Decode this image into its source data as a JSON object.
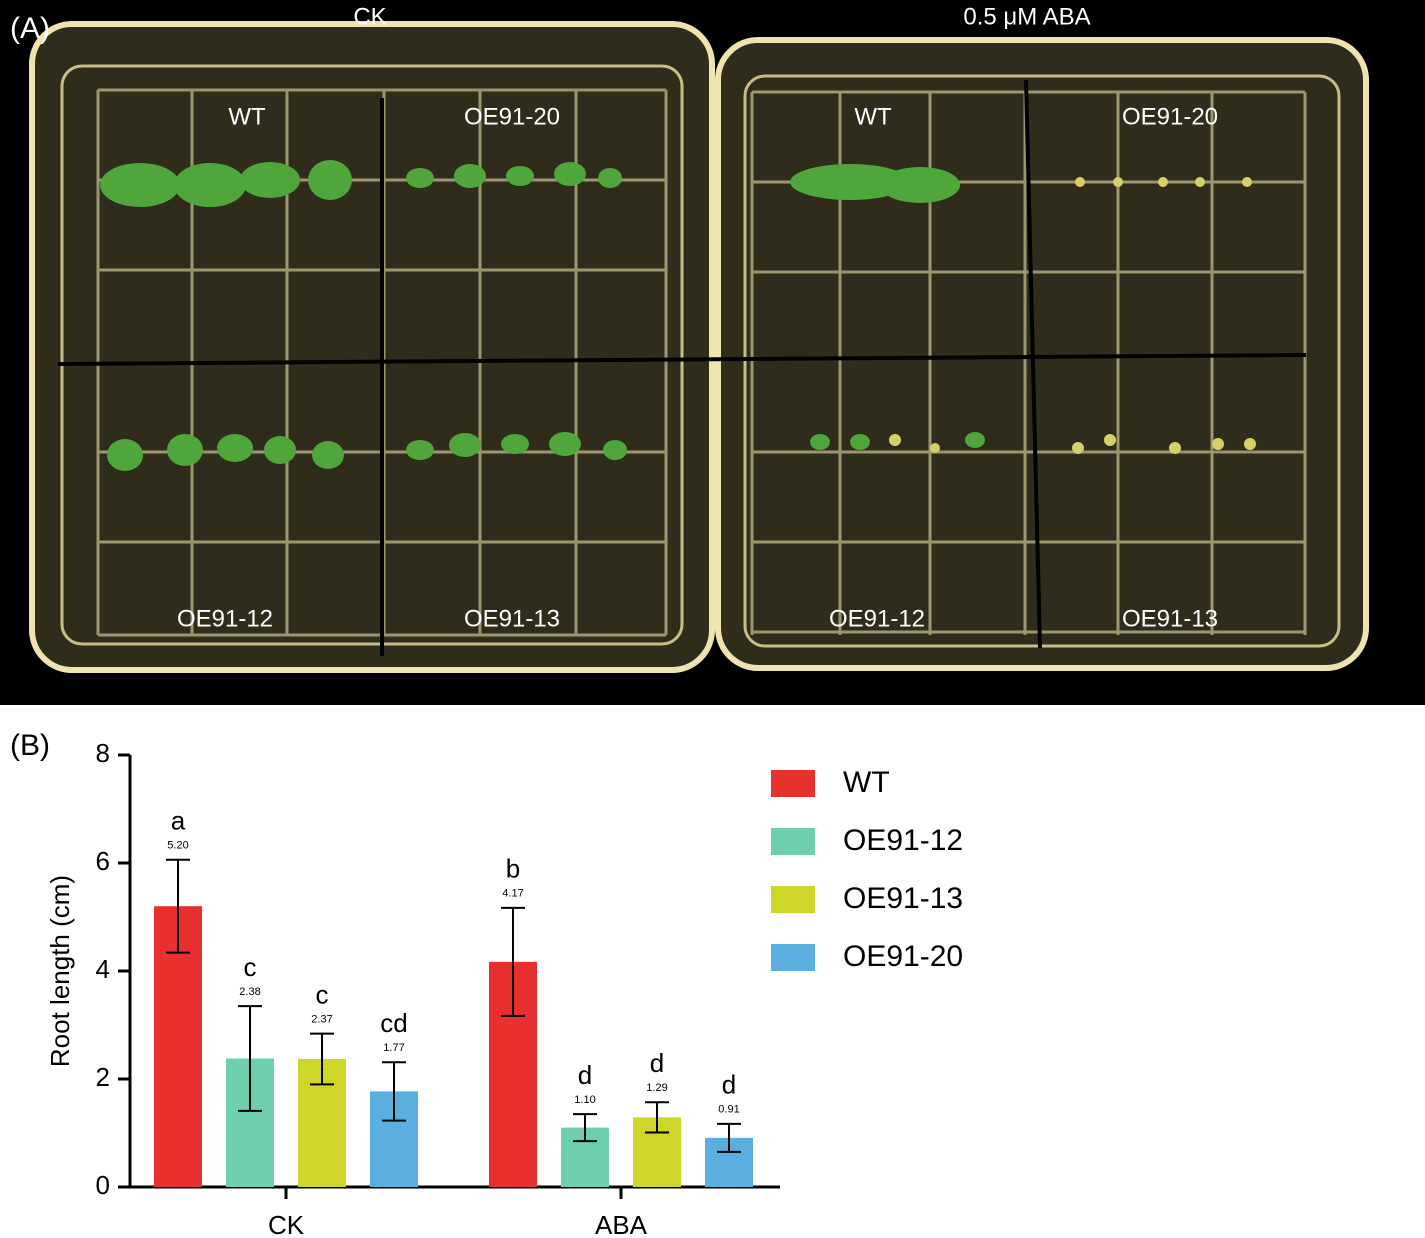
{
  "panel_a": {
    "label": "(A)",
    "conditions": [
      "CK",
      "0.5 μM ABA"
    ],
    "plates": [
      {
        "quadrants": [
          "WT",
          "OE91-20",
          "OE91-12",
          "OE91-13"
        ]
      },
      {
        "quadrants": [
          "WT",
          "OE91-20",
          "OE91-12",
          "OE91-13"
        ]
      }
    ]
  },
  "chart_data": {
    "type": "bar",
    "panel_label": "(B)",
    "ylabel": "Root length (cm)",
    "categories": [
      "CK",
      "ABA"
    ],
    "series": [
      {
        "name": "WT",
        "color": "#e8302e",
        "values": [
          5.2,
          4.17
        ],
        "value_labels": [
          "5.20",
          "4.17"
        ],
        "errors": [
          0.86,
          1.0
        ],
        "letters": [
          "a",
          "b"
        ]
      },
      {
        "name": "OE91-12",
        "color": "#6dcfae",
        "values": [
          2.38,
          1.1
        ],
        "value_labels": [
          "2.38",
          "1.10"
        ],
        "errors": [
          0.97,
          0.25
        ],
        "letters": [
          "c",
          "d"
        ]
      },
      {
        "name": "OE91-13",
        "color": "#cfd62a",
        "values": [
          2.37,
          1.29
        ],
        "value_labels": [
          "2.37",
          "1.29"
        ],
        "errors": [
          0.47,
          0.28
        ],
        "letters": [
          "c",
          "d"
        ]
      },
      {
        "name": "OE91-20",
        "color": "#5aaee0",
        "values": [
          1.77,
          0.91
        ],
        "value_labels": [
          "1.77",
          "0.91"
        ],
        "errors": [
          0.54,
          0.26
        ],
        "letters": [
          "cd",
          "d"
        ]
      }
    ],
    "ylim": [
      0,
      8
    ],
    "yticks": [
      0,
      2,
      4,
      6,
      8
    ]
  }
}
